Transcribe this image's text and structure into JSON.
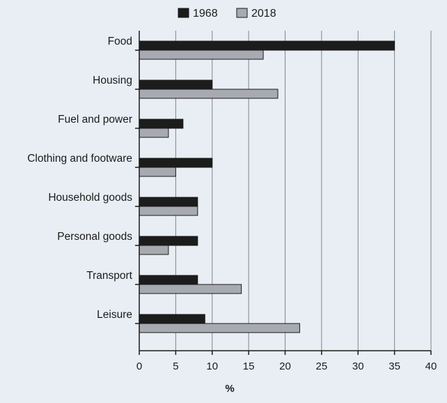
{
  "chart_data": {
    "type": "bar",
    "orientation": "horizontal",
    "title": "",
    "xlabel": "%",
    "ylabel": "",
    "xlim": [
      0,
      40
    ],
    "xticks": [
      0,
      5,
      10,
      15,
      20,
      25,
      30,
      35,
      40
    ],
    "grid": "vertical",
    "legend_position": "top-center",
    "categories": [
      "Food",
      "Housing",
      "Fuel and power",
      "Clothing and footware",
      "Household goods",
      "Personal goods",
      "Transport",
      "Leisure"
    ],
    "series": [
      {
        "name": "1968",
        "color": "#1c1c1c",
        "values": [
          35,
          10,
          6,
          10,
          8,
          8,
          8,
          9
        ]
      },
      {
        "name": "2018",
        "color": "#a8aab2",
        "values": [
          17,
          19,
          4,
          5,
          8,
          4,
          14,
          22
        ]
      }
    ]
  }
}
